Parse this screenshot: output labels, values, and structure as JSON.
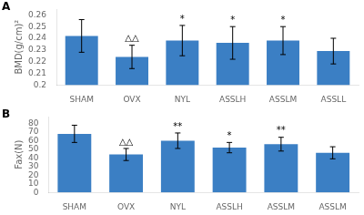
{
  "chart_data": [
    {
      "type": "bar",
      "title": "A",
      "categories": [
        "SHAM",
        "OVX",
        "NYL",
        "ASSLH",
        "ASSLM",
        "ASSLL"
      ],
      "values": [
        0.242,
        0.224,
        0.238,
        0.236,
        0.238,
        0.229
      ],
      "errors": [
        0.014,
        0.01,
        0.013,
        0.014,
        0.012,
        0.011
      ],
      "y_label": "BMD(g/cm)²",
      "ylim": [
        0.2,
        0.265
      ],
      "yticks": [
        0.2,
        0.21,
        0.22,
        0.23,
        0.24,
        0.25,
        0.26
      ],
      "annotations": [
        {
          "index": 1,
          "text": "△△"
        },
        {
          "index": 2,
          "text": "*"
        },
        {
          "index": 3,
          "text": "*"
        },
        {
          "index": 4,
          "text": "*"
        }
      ],
      "color": "#3B7FC4",
      "grid": false
    },
    {
      "type": "bar",
      "title": "B",
      "categories": [
        "SHAM",
        "OVX",
        "NYL",
        "ASSLH",
        "ASSLM",
        "ASSLM"
      ],
      "values": [
        68,
        44,
        60,
        52,
        56,
        46
      ],
      "errors": [
        10,
        7,
        9,
        6,
        8,
        7
      ],
      "y_label": "Fax(N)",
      "ylim": [
        0,
        88
      ],
      "yticks": [
        0,
        10,
        20,
        30,
        40,
        50,
        60,
        70,
        80
      ],
      "annotations": [
        {
          "index": 1,
          "text": "△△"
        },
        {
          "index": 2,
          "text": "**"
        },
        {
          "index": 3,
          "text": "*"
        },
        {
          "index": 4,
          "text": "**"
        }
      ],
      "color": "#3B7FC4",
      "grid": false
    }
  ]
}
